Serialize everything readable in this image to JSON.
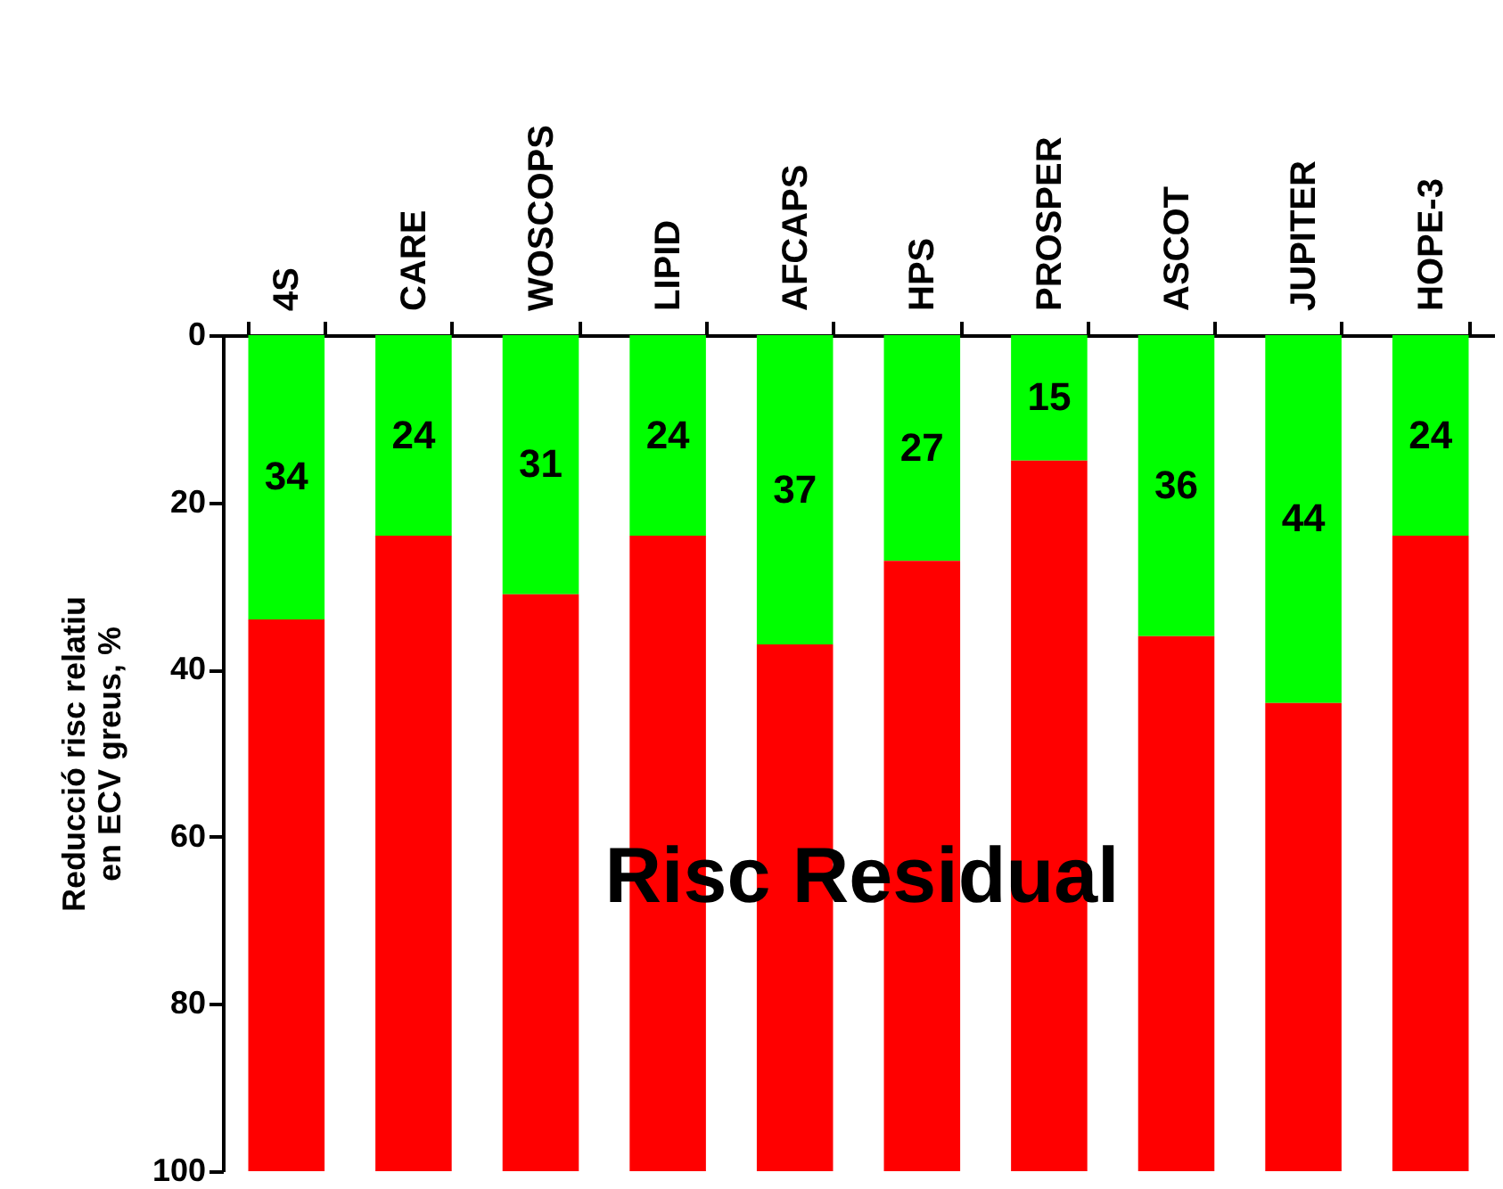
{
  "chart_data": {
    "type": "bar",
    "stacked": true,
    "ylabel": "Reducció risc relatiu\nen ECV greus, %",
    "categories": [
      "4S",
      "CARE",
      "WOSCOPS",
      "LIPID",
      "AFCAPS",
      "HPS",
      "PROSPER",
      "ASCOT",
      "JUPITER",
      "HOPE-3"
    ],
    "series": [
      {
        "color": "#00ff00",
        "values": [
          34,
          24,
          31,
          24,
          37,
          27,
          15,
          36,
          44,
          24
        ],
        "value_labels": [
          "34",
          "24",
          "31",
          "24",
          "37",
          "27",
          "15",
          "36",
          "44",
          "24"
        ]
      },
      {
        "color": "#ff0000",
        "values": [
          66,
          76,
          69,
          76,
          63,
          73,
          85,
          64,
          56,
          76
        ]
      }
    ],
    "ylim": [
      100,
      0
    ],
    "yticks": [
      0,
      20,
      40,
      60,
      80,
      100
    ],
    "grid": false,
    "annotations": [
      "Risc Residual"
    ]
  }
}
